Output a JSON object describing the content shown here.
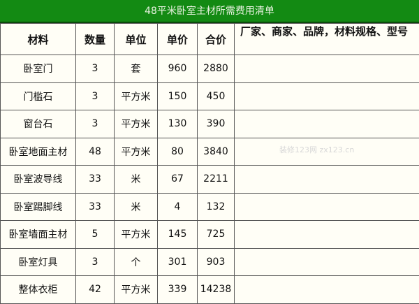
{
  "title": "48平米卧室主材所需费用清单",
  "columns": [
    "材料",
    "数量",
    "单位",
    "单价",
    "合价",
    "厂家、商家、品牌，材料规格、型号"
  ],
  "rows": [
    [
      "卧室门",
      "3",
      "套",
      "960",
      "2880",
      ""
    ],
    [
      "门槛石",
      "3",
      "平方米",
      "150",
      "450",
      ""
    ],
    [
      "窗台石",
      "3",
      "平方米",
      "130",
      "390",
      ""
    ],
    [
      "卧室地面主材",
      "48",
      "平方米",
      "80",
      "3840",
      ""
    ],
    [
      "卧室波导线",
      "33",
      "米",
      "67",
      "2211",
      ""
    ],
    [
      "卧室踢脚线",
      "33",
      "米",
      "4",
      "132",
      ""
    ],
    [
      "卧室墙面主材",
      "5",
      "平方米",
      "145",
      "725",
      ""
    ],
    [
      "卧室灯具",
      "3",
      "个",
      "301",
      "903",
      ""
    ],
    [
      "整体衣柜",
      "42",
      "平方米",
      "339",
      "14238",
      ""
    ]
  ],
  "watermark": "装修123网 zx123.cn",
  "colors": {
    "title_bg": "#138a13",
    "border": "#555555"
  }
}
